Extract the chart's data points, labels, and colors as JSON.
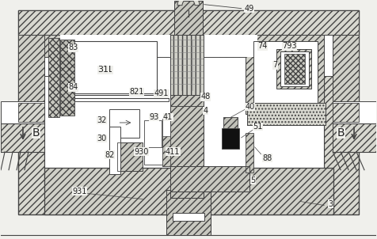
{
  "bg_color": "#f0f0ec",
  "lc": "#444444",
  "fig_width": 4.76,
  "fig_height": 3.02,
  "dpi": 100
}
